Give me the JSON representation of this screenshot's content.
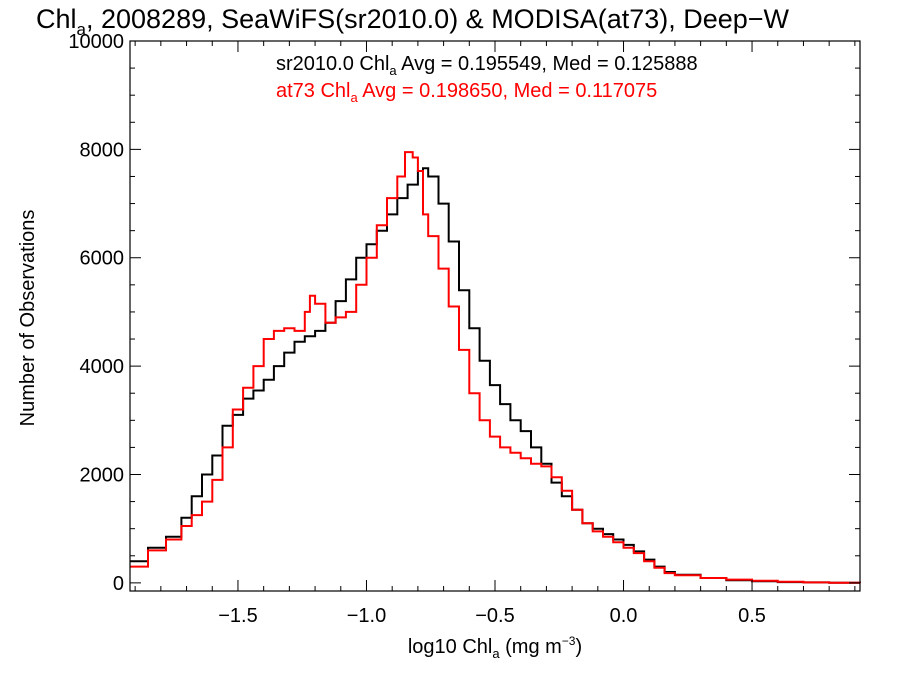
{
  "chart_data": {
    "type": "line",
    "title": {
      "prefix": "Chl",
      "sub": "a",
      "rest": ", 2008289, SeaWiFS(sr2010.0) & MODISA(at73), Deep−W"
    },
    "xlabel": {
      "prefix": "log10 Chl",
      "sub": "a",
      "mid": " (mg m",
      "sup": "−3",
      "suffix": ")"
    },
    "ylabel": "Number of Observations",
    "xlim": [
      -1.92,
      0.92
    ],
    "ylim": [
      -150,
      10000
    ],
    "x_ticks": [
      {
        "value": -1.5,
        "label": "−1.5"
      },
      {
        "value": -1.0,
        "label": "−1.0"
      },
      {
        "value": -0.5,
        "label": "−0.5"
      },
      {
        "value": 0.0,
        "label": "0.0"
      },
      {
        "value": 0.5,
        "label": "0.5"
      }
    ],
    "y_ticks": [
      {
        "value": 0,
        "label": "0"
      },
      {
        "value": 2000,
        "label": "2000"
      },
      {
        "value": 4000,
        "label": "4000"
      },
      {
        "value": 6000,
        "label": "6000"
      },
      {
        "value": 8000,
        "label": "8000"
      },
      {
        "value": 10000,
        "label": "10000"
      }
    ],
    "annotations": [
      {
        "prefix": "sr2010.0 Chl",
        "sub": "a",
        "rest": " Avg = 0.195549, Med = 0.125888",
        "color": "#000000"
      },
      {
        "prefix": "at73 Chl",
        "sub": "a",
        "rest": " Avg = 0.198650, Med = 0.117075",
        "color": "#ff0000"
      }
    ],
    "series": [
      {
        "color": "#000000",
        "x": [
          -1.92,
          -1.85,
          -1.78,
          -1.72,
          -1.68,
          -1.64,
          -1.6,
          -1.56,
          -1.52,
          -1.48,
          -1.44,
          -1.4,
          -1.36,
          -1.32,
          -1.28,
          -1.24,
          -1.2,
          -1.16,
          -1.12,
          -1.08,
          -1.04,
          -1.0,
          -0.96,
          -0.92,
          -0.88,
          -0.84,
          -0.8,
          -0.78,
          -0.76,
          -0.72,
          -0.68,
          -0.64,
          -0.6,
          -0.56,
          -0.52,
          -0.48,
          -0.44,
          -0.4,
          -0.36,
          -0.32,
          -0.28,
          -0.24,
          -0.2,
          -0.16,
          -0.12,
          -0.08,
          -0.04,
          0.0,
          0.04,
          0.08,
          0.12,
          0.16,
          0.2,
          0.3,
          0.4,
          0.5,
          0.6,
          0.7,
          0.8,
          0.92
        ],
        "y": [
          400,
          650,
          850,
          1200,
          1600,
          2000,
          2350,
          2900,
          3100,
          3400,
          3550,
          3750,
          4000,
          4250,
          4450,
          4550,
          4650,
          4800,
          5200,
          5600,
          6000,
          6250,
          6500,
          6800,
          7100,
          7350,
          7600,
          7650,
          7500,
          7000,
          6300,
          5400,
          4700,
          4100,
          3650,
          3300,
          3000,
          2800,
          2500,
          2200,
          1850,
          1600,
          1350,
          1100,
          1000,
          900,
          800,
          700,
          580,
          430,
          300,
          200,
          150,
          90,
          50,
          30,
          15,
          8,
          3,
          0
        ]
      },
      {
        "color": "#ff0000",
        "x": [
          -1.92,
          -1.85,
          -1.78,
          -1.72,
          -1.68,
          -1.64,
          -1.6,
          -1.56,
          -1.52,
          -1.48,
          -1.44,
          -1.4,
          -1.36,
          -1.32,
          -1.28,
          -1.24,
          -1.22,
          -1.2,
          -1.16,
          -1.12,
          -1.08,
          -1.04,
          -1.0,
          -0.96,
          -0.92,
          -0.88,
          -0.85,
          -0.82,
          -0.8,
          -0.78,
          -0.76,
          -0.72,
          -0.68,
          -0.64,
          -0.6,
          -0.56,
          -0.52,
          -0.48,
          -0.44,
          -0.4,
          -0.36,
          -0.32,
          -0.28,
          -0.24,
          -0.2,
          -0.16,
          -0.12,
          -0.08,
          -0.04,
          0.0,
          0.04,
          0.08,
          0.12,
          0.16,
          0.2,
          0.3,
          0.4,
          0.5,
          0.6,
          0.7,
          0.8,
          0.92
        ],
        "y": [
          300,
          600,
          800,
          1050,
          1250,
          1500,
          1900,
          2500,
          3200,
          3600,
          4000,
          4500,
          4650,
          4700,
          4650,
          5000,
          5300,
          5150,
          4800,
          4900,
          5000,
          5500,
          6000,
          6600,
          7100,
          7500,
          7950,
          7850,
          7600,
          6800,
          6400,
          5800,
          5100,
          4300,
          3500,
          3000,
          2700,
          2500,
          2400,
          2300,
          2200,
          2150,
          1950,
          1700,
          1350,
          1100,
          950,
          850,
          750,
          650,
          550,
          400,
          280,
          180,
          140,
          90,
          60,
          40,
          20,
          8,
          3,
          0
        ]
      }
    ]
  }
}
